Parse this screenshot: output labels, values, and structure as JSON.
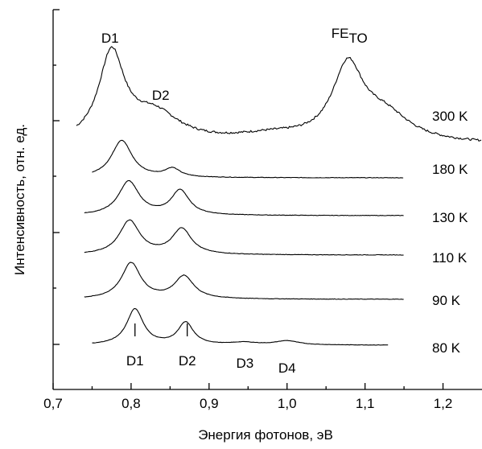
{
  "chart_data": {
    "type": "line",
    "title": "",
    "xlabel": "Энергия фотонов, эВ",
    "ylabel": "Интенсивность, отн. ед.",
    "xlim": [
      0.7,
      1.25
    ],
    "x_ticks": [
      "0,7",
      "0,8",
      "0,9",
      "1,0",
      "1,1",
      "1,2"
    ],
    "x_tick_values": [
      0.7,
      0.8,
      0.9,
      1.0,
      1.1,
      1.2
    ],
    "y_ticks_labeled": false,
    "grid": false,
    "legend": "none",
    "series": [
      {
        "name": "300 K",
        "x_range": [
          0.73,
          1.25
        ],
        "baseline": 0.0,
        "peaks": [
          {
            "center": 0.775,
            "height": 1.0,
            "width": 0.02
          },
          {
            "center": 0.83,
            "height": 0.32,
            "width": 0.04
          },
          {
            "center": 0.98,
            "height": 0.08,
            "width": 0.06
          },
          {
            "center": 1.078,
            "height": 0.84,
            "width": 0.024
          },
          {
            "center": 1.125,
            "height": 0.3,
            "width": 0.04
          }
        ],
        "noise": 0.012
      },
      {
        "name": "180 K",
        "x_range": [
          0.75,
          1.15
        ],
        "baseline": 0.0,
        "peaks": [
          {
            "center": 0.788,
            "height": 0.62,
            "width": 0.016
          },
          {
            "center": 0.853,
            "height": 0.14,
            "width": 0.012
          }
        ],
        "noise": 0.004
      },
      {
        "name": "130 K",
        "x_range": [
          0.74,
          1.15
        ],
        "baseline": 0.0,
        "peaks": [
          {
            "center": 0.797,
            "height": 0.62,
            "width": 0.016
          },
          {
            "center": 0.863,
            "height": 0.45,
            "width": 0.014
          }
        ],
        "noise": 0.004
      },
      {
        "name": "110 K",
        "x_range": [
          0.74,
          1.15
        ],
        "baseline": 0.0,
        "peaks": [
          {
            "center": 0.798,
            "height": 0.62,
            "width": 0.016
          },
          {
            "center": 0.865,
            "height": 0.47,
            "width": 0.015
          }
        ],
        "noise": 0.004
      },
      {
        "name": "90 K",
        "x_range": [
          0.74,
          1.15
        ],
        "baseline": 0.0,
        "peaks": [
          {
            "center": 0.8,
            "height": 0.64,
            "width": 0.015
          },
          {
            "center": 0.868,
            "height": 0.4,
            "width": 0.015
          }
        ],
        "noise": 0.004
      },
      {
        "name": "80 K",
        "x_range": [
          0.75,
          1.13
        ],
        "baseline": 0.0,
        "peaks": [
          {
            "center": 0.805,
            "height": 0.62,
            "width": 0.013
          },
          {
            "center": 0.87,
            "height": 0.38,
            "width": 0.012
          },
          {
            "center": 0.945,
            "height": 0.04,
            "width": 0.02
          },
          {
            "center": 1.0,
            "height": 0.07,
            "width": 0.018
          }
        ],
        "noise": 0.003
      }
    ],
    "annotations": {
      "top": [
        {
          "text": "D1",
          "x": 0.773
        },
        {
          "text": "D2",
          "x": 0.838
        },
        {
          "text": "FE",
          "sub": "TO",
          "x": 1.08
        }
      ],
      "bottom": [
        {
          "text": "D1",
          "x": 0.805,
          "marker": true
        },
        {
          "text": "D2",
          "x": 0.872,
          "marker": true
        },
        {
          "text": "D3",
          "x": 0.946,
          "marker": false
        },
        {
          "text": "D4",
          "x": 1.0,
          "marker": false
        }
      ]
    }
  }
}
